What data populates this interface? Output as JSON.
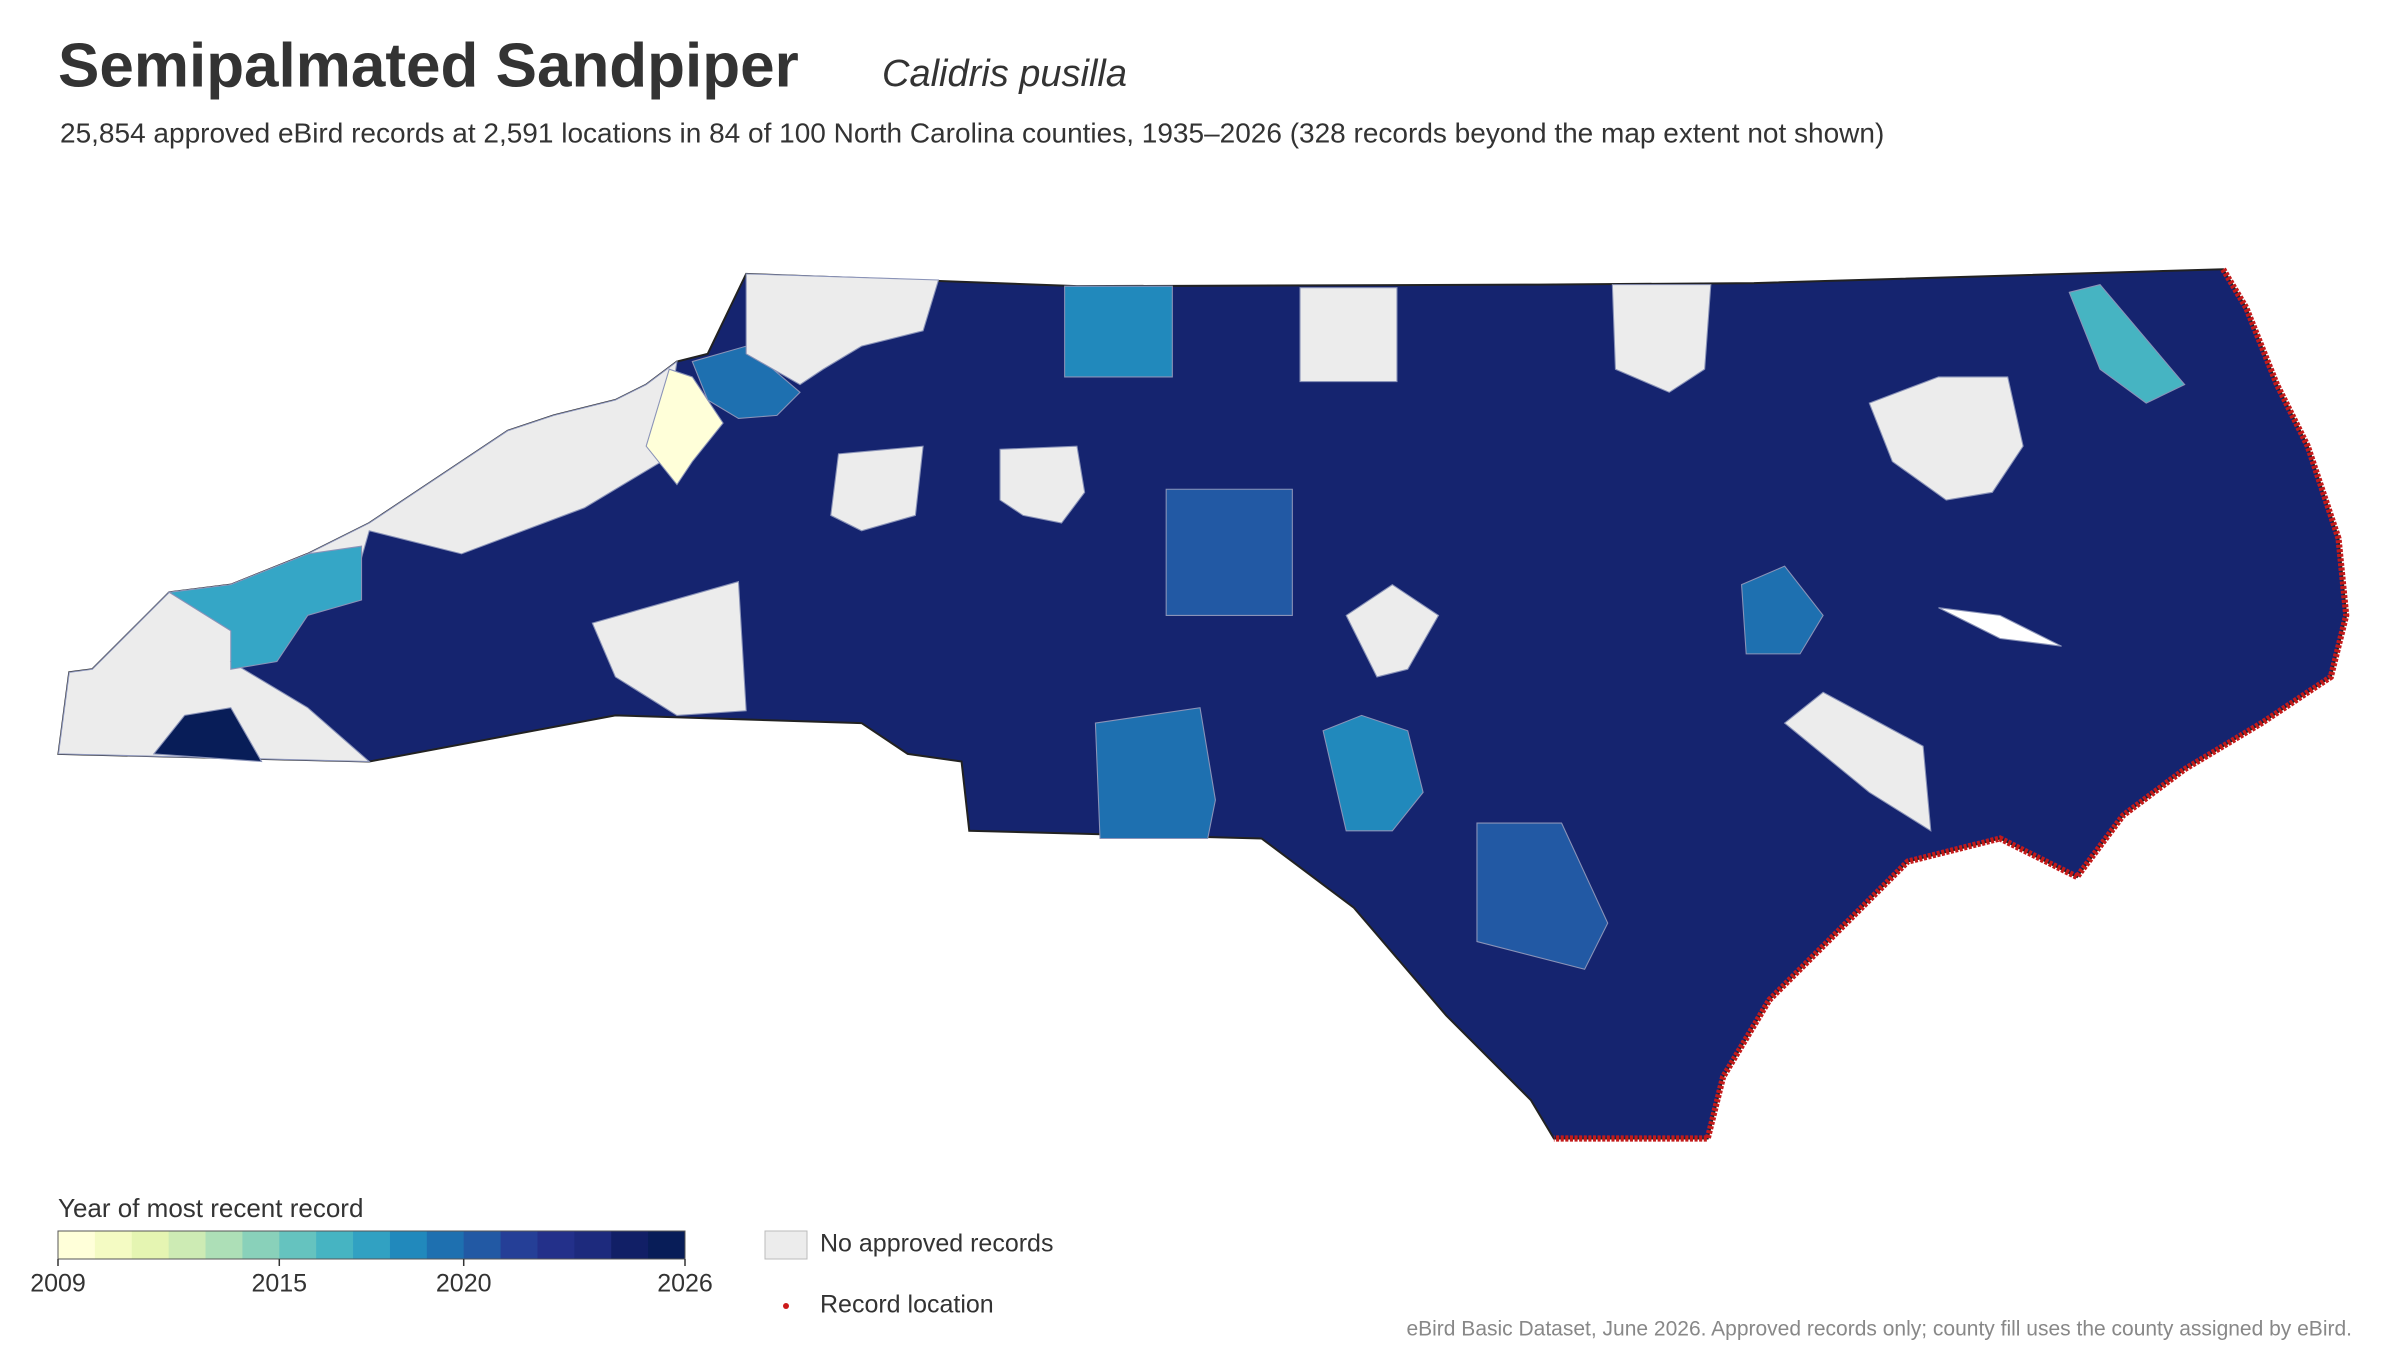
{
  "header": {
    "title": "Semipalmated Sandpiper",
    "scientific_name": "Calidris pusilla",
    "subtitle": "25,854 approved eBird records at 2,591 locations in 84 of 100 North Carolina counties, 1935–2026 (328 records beyond the map extent not shown)"
  },
  "legend": {
    "title": "Year of most recent record",
    "range": [
      2009,
      2026
    ],
    "ticks": [
      2009,
      2015,
      2020,
      2026
    ],
    "colors": [
      "#ffffd9",
      "#f4fbc3",
      "#e5f5b2",
      "#cdebb4",
      "#addfb7",
      "#89d1ba",
      "#65c3bf",
      "#46b4c2",
      "#31a1c2",
      "#2189bc",
      "#1e70b0",
      "#2259a4",
      "#253f97",
      "#23308a",
      "#1d2a7d",
      "#111f66",
      "#081d58"
    ],
    "no_data_label": "No approved records",
    "no_data_color": "#ececec",
    "point_label": "Record location",
    "point_color": "#cc1a1a"
  },
  "footer": "eBird Basic Dataset, June 2026. Approved records only; county fill uses the county assigned by eBird."
}
